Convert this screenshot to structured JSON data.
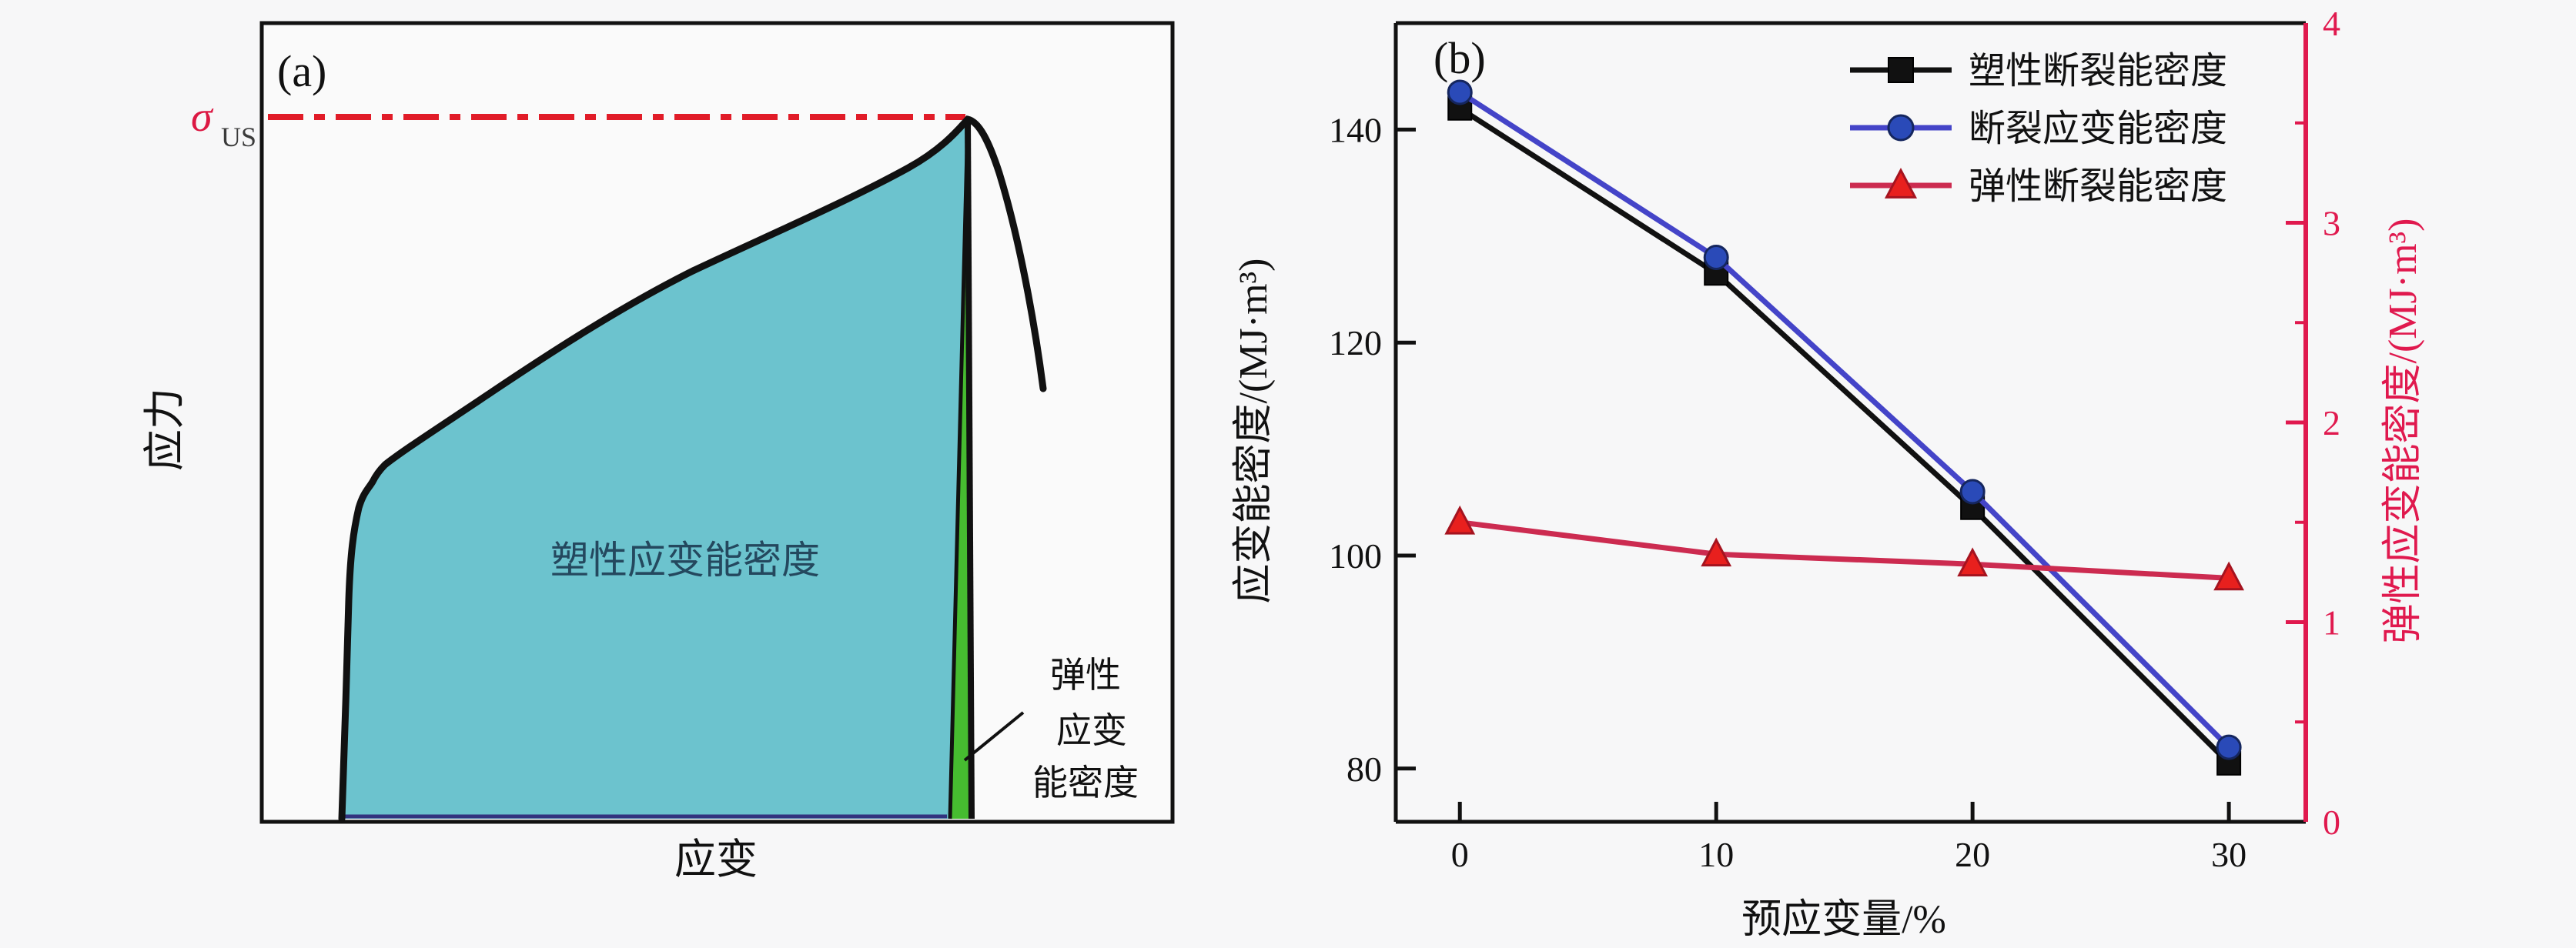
{
  "figure": {
    "background": "#f7f7f8",
    "panel_a": {
      "tag": "(a)",
      "ylabel": "应力",
      "xlabel": "应变",
      "sigma_label": "σ",
      "sigma_sub": "US",
      "plastic_area_label": "塑性应变能密度",
      "elastic_area_label_lines": [
        "弹性",
        "应变",
        "能密度"
      ],
      "colors": {
        "plastic_fill": "#6cc3ce",
        "elastic_fill": "#46bc30",
        "sigma_line": "#e11c28",
        "sigma_text": "#dc1843",
        "curve": "#111111",
        "area_label_text": "#24485e",
        "teal_bottom_edge": "#32327e"
      }
    },
    "panel_b": {
      "tag": "(b)"
    }
  },
  "chart_data": {
    "type": "line",
    "title": "",
    "xlabel": "预应变量/%",
    "ylabel_left": "应变能密度/(MJ·m³)",
    "ylabel_right": "弹性应变能密度/(MJ·m³)",
    "x": [
      0,
      10,
      20,
      30
    ],
    "xlim": [
      -2.5,
      33
    ],
    "xticks": [
      0,
      10,
      20,
      30
    ],
    "ylim_left": [
      75,
      150
    ],
    "yticks_left": [
      80,
      100,
      120,
      140
    ],
    "ylim_right": [
      0,
      4
    ],
    "yticks_right": [
      0,
      1,
      2,
      3,
      4
    ],
    "yticks_right_minor": [
      0.5,
      1.5,
      2.5,
      3.5
    ],
    "grid": false,
    "legend_position": "upper-right",
    "axis_color": "#111111",
    "axis_color_right": "#e0194e",
    "series": [
      {
        "name": "塑性断裂能密度",
        "axis": "left",
        "color": "#111111",
        "marker": "square",
        "marker_color": "#111111",
        "marker_stroke": "#000000",
        "values": [
          142,
          126.5,
          104.5,
          80.5
        ]
      },
      {
        "name": "断裂应变能密度",
        "axis": "left",
        "color": "#4444c8",
        "marker": "circle",
        "marker_color": "#2a4ab8",
        "marker_stroke": "#15265e",
        "values": [
          143.5,
          128,
          106,
          82
        ]
      },
      {
        "name": "弹性断裂能密度",
        "axis": "right",
        "color": "#cc2b50",
        "marker": "triangle",
        "marker_color": "#e8201e",
        "marker_stroke": "#a5131f",
        "values": [
          1.5,
          1.34,
          1.29,
          1.22
        ]
      }
    ]
  }
}
